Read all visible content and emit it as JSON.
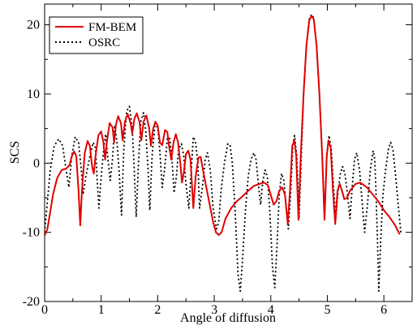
{
  "chart_data": {
    "type": "line",
    "title": "",
    "xlabel": "Angle of diffusion",
    "ylabel": "SCS",
    "xlim": [
      0,
      6.5
    ],
    "ylim": [
      -20,
      23
    ],
    "xticks": [
      0,
      1,
      2,
      3,
      4,
      5,
      6
    ],
    "yticks": [
      -20,
      -10,
      0,
      10,
      20
    ],
    "grid": false,
    "legend_position": "top-left",
    "series": [
      {
        "name": "FM-BEM",
        "color": "#e00000",
        "style": "solid",
        "points": [
          [
            0.0,
            -10.5
          ],
          [
            0.05,
            -9.5
          ],
          [
            0.1,
            -7.0
          ],
          [
            0.15,
            -4.5
          ],
          [
            0.22,
            -2.2
          ],
          [
            0.3,
            -1.0
          ],
          [
            0.38,
            -0.8
          ],
          [
            0.44,
            -0.3
          ],
          [
            0.48,
            1.0
          ],
          [
            0.52,
            1.7
          ],
          [
            0.56,
            1.0
          ],
          [
            0.6,
            -4.0
          ],
          [
            0.63,
            -9.0
          ],
          [
            0.66,
            -4.0
          ],
          [
            0.71,
            1.5
          ],
          [
            0.76,
            3.2
          ],
          [
            0.8,
            2.5
          ],
          [
            0.84,
            -0.5
          ],
          [
            0.87,
            -1.5
          ],
          [
            0.9,
            1.0
          ],
          [
            0.95,
            4.0
          ],
          [
            1.0,
            4.6
          ],
          [
            1.04,
            3.0
          ],
          [
            1.07,
            0.5
          ],
          [
            1.1,
            3.0
          ],
          [
            1.15,
            5.8
          ],
          [
            1.2,
            5.2
          ],
          [
            1.23,
            3.0
          ],
          [
            1.26,
            5.5
          ],
          [
            1.3,
            6.8
          ],
          [
            1.35,
            5.8
          ],
          [
            1.38,
            3.3
          ],
          [
            1.42,
            6.0
          ],
          [
            1.47,
            7.1
          ],
          [
            1.52,
            5.8
          ],
          [
            1.55,
            4.3
          ],
          [
            1.59,
            6.5
          ],
          [
            1.63,
            7.2
          ],
          [
            1.68,
            5.9
          ],
          [
            1.71,
            3.3
          ],
          [
            1.75,
            6.0
          ],
          [
            1.8,
            6.9
          ],
          [
            1.85,
            5.0
          ],
          [
            1.88,
            2.5
          ],
          [
            1.92,
            5.0
          ],
          [
            1.96,
            6.0
          ],
          [
            2.0,
            5.4
          ],
          [
            2.04,
            3.0
          ],
          [
            2.08,
            2.6
          ],
          [
            2.13,
            4.8
          ],
          [
            2.17,
            4.5
          ],
          [
            2.2,
            2.5
          ],
          [
            2.24,
            0.5
          ],
          [
            2.28,
            3.0
          ],
          [
            2.32,
            4.2
          ],
          [
            2.36,
            3.0
          ],
          [
            2.4,
            0.0
          ],
          [
            2.43,
            -2.8
          ],
          [
            2.46,
            -1.5
          ],
          [
            2.5,
            1.3
          ],
          [
            2.54,
            1.8
          ],
          [
            2.58,
            0.5
          ],
          [
            2.63,
            -6.5
          ],
          [
            2.67,
            -2.0
          ],
          [
            2.72,
            0.8
          ],
          [
            2.76,
            0.9
          ],
          [
            2.8,
            -1.0
          ],
          [
            2.86,
            -3.5
          ],
          [
            2.92,
            -6.0
          ],
          [
            2.98,
            -8.5
          ],
          [
            3.03,
            -10.0
          ],
          [
            3.08,
            -10.4
          ],
          [
            3.13,
            -10.0
          ],
          [
            3.2,
            -8.0
          ],
          [
            3.3,
            -6.5
          ],
          [
            3.4,
            -5.5
          ],
          [
            3.5,
            -4.8
          ],
          [
            3.6,
            -4.0
          ],
          [
            3.7,
            -3.3
          ],
          [
            3.8,
            -3.0
          ],
          [
            3.88,
            -2.8
          ],
          [
            3.95,
            -3.2
          ],
          [
            4.0,
            -4.6
          ],
          [
            4.05,
            -6.0
          ],
          [
            4.1,
            -5.5
          ],
          [
            4.15,
            -4.0
          ],
          [
            4.2,
            -3.5
          ],
          [
            4.25,
            -4.5
          ],
          [
            4.3,
            -8.8
          ],
          [
            4.34,
            -4.0
          ],
          [
            4.38,
            2.5
          ],
          [
            4.42,
            3.3
          ],
          [
            4.45,
            1.0
          ],
          [
            4.49,
            -8.2
          ],
          [
            4.53,
            1.0
          ],
          [
            4.58,
            10.0
          ],
          [
            4.63,
            17.0
          ],
          [
            4.68,
            20.6
          ],
          [
            4.72,
            21.3
          ],
          [
            4.76,
            20.8
          ],
          [
            4.81,
            17.0
          ],
          [
            4.86,
            10.0
          ],
          [
            4.91,
            1.0
          ],
          [
            4.95,
            -8.2
          ],
          [
            4.99,
            1.0
          ],
          [
            5.02,
            3.3
          ],
          [
            5.06,
            2.2
          ],
          [
            5.1,
            -4.0
          ],
          [
            5.14,
            -8.8
          ],
          [
            5.18,
            -4.0
          ],
          [
            5.22,
            -3.0
          ],
          [
            5.26,
            -4.0
          ],
          [
            5.3,
            -5.2
          ],
          [
            5.35,
            -5.0
          ],
          [
            5.4,
            -4.0
          ],
          [
            5.5,
            -3.0
          ],
          [
            5.58,
            -2.8
          ],
          [
            5.7,
            -3.5
          ],
          [
            5.8,
            -4.5
          ],
          [
            5.9,
            -5.5
          ],
          [
            6.0,
            -6.8
          ],
          [
            6.1,
            -7.8
          ],
          [
            6.2,
            -9.0
          ],
          [
            6.28,
            -10.3
          ]
        ]
      },
      {
        "name": "OSRC",
        "color": "#000000",
        "style": "dotted",
        "points": [
          [
            0.0,
            -10.0
          ],
          [
            0.05,
            -5.5
          ],
          [
            0.1,
            -1.0
          ],
          [
            0.17,
            2.5
          ],
          [
            0.25,
            3.5
          ],
          [
            0.32,
            2.5
          ],
          [
            0.38,
            -1.0
          ],
          [
            0.43,
            -3.5
          ],
          [
            0.48,
            1.0
          ],
          [
            0.54,
            3.8
          ],
          [
            0.6,
            3.0
          ],
          [
            0.65,
            -1.0
          ],
          [
            0.68,
            -4.5
          ],
          [
            0.74,
            -1.5
          ],
          [
            0.8,
            1.0
          ],
          [
            0.86,
            3.0
          ],
          [
            0.9,
            2.2
          ],
          [
            0.93,
            -2.5
          ],
          [
            0.96,
            -6.5
          ],
          [
            1.0,
            -2.0
          ],
          [
            1.05,
            2.5
          ],
          [
            1.08,
            4.2
          ],
          [
            1.12,
            0.5
          ],
          [
            1.16,
            -2.5
          ],
          [
            1.2,
            0.5
          ],
          [
            1.24,
            5.5
          ],
          [
            1.28,
            3.0
          ],
          [
            1.32,
            -1.5
          ],
          [
            1.36,
            -7.5
          ],
          [
            1.4,
            2.0
          ],
          [
            1.45,
            7.5
          ],
          [
            1.5,
            8.2
          ],
          [
            1.55,
            5.0
          ],
          [
            1.58,
            0.0
          ],
          [
            1.62,
            -7.8
          ],
          [
            1.66,
            0.0
          ],
          [
            1.7,
            6.0
          ],
          [
            1.75,
            7.3
          ],
          [
            1.79,
            4.5
          ],
          [
            1.83,
            -1.0
          ],
          [
            1.86,
            -6.8
          ],
          [
            1.9,
            1.0
          ],
          [
            1.95,
            5.5
          ],
          [
            2.0,
            5.2
          ],
          [
            2.04,
            1.5
          ],
          [
            2.08,
            -3.5
          ],
          [
            2.12,
            -1.0
          ],
          [
            2.17,
            3.5
          ],
          [
            2.21,
            3.7
          ],
          [
            2.25,
            1.0
          ],
          [
            2.29,
            -4.3
          ],
          [
            2.33,
            -2.0
          ],
          [
            2.37,
            2.0
          ],
          [
            2.42,
            2.8
          ],
          [
            2.46,
            1.0
          ],
          [
            2.5,
            -3.0
          ],
          [
            2.55,
            -6.5
          ],
          [
            2.59,
            -1.5
          ],
          [
            2.63,
            3.8
          ],
          [
            2.67,
            3.0
          ],
          [
            2.71,
            0.0
          ],
          [
            2.74,
            -6.5
          ],
          [
            2.79,
            -3.5
          ],
          [
            2.84,
            0.5
          ],
          [
            2.88,
            1.5
          ],
          [
            2.93,
            -1.0
          ],
          [
            2.98,
            -6.5
          ],
          [
            3.04,
            -9.5
          ],
          [
            3.08,
            -8.5
          ],
          [
            3.12,
            -4.0
          ],
          [
            3.18,
            0.0
          ],
          [
            3.24,
            2.8
          ],
          [
            3.28,
            2.6
          ],
          [
            3.32,
            0.0
          ],
          [
            3.37,
            -7.0
          ],
          [
            3.42,
            -16.0
          ],
          [
            3.46,
            -18.5
          ],
          [
            3.5,
            -14.0
          ],
          [
            3.55,
            -7.0
          ],
          [
            3.6,
            -2.0
          ],
          [
            3.65,
            0.5
          ],
          [
            3.7,
            1.5
          ],
          [
            3.74,
            0.5
          ],
          [
            3.78,
            -3.0
          ],
          [
            3.82,
            -6.0
          ],
          [
            3.86,
            -2.5
          ],
          [
            3.9,
            -1.0
          ],
          [
            3.94,
            -2.0
          ],
          [
            3.98,
            -6.5
          ],
          [
            4.03,
            -15.0
          ],
          [
            4.07,
            -18.0
          ],
          [
            4.11,
            -12.0
          ],
          [
            4.15,
            -4.5
          ],
          [
            4.19,
            -1.5
          ],
          [
            4.23,
            -2.5
          ],
          [
            4.27,
            -6.0
          ],
          [
            4.31,
            -9.5
          ],
          [
            4.35,
            -4.5
          ],
          [
            4.39,
            2.5
          ],
          [
            4.42,
            4.0
          ],
          [
            4.46,
            1.0
          ],
          [
            4.5,
            -8.0
          ],
          [
            4.54,
            1.0
          ],
          [
            4.58,
            10.0
          ],
          [
            4.63,
            17.0
          ],
          [
            4.68,
            20.8
          ],
          [
            4.72,
            21.5
          ],
          [
            4.76,
            21.0
          ],
          [
            4.81,
            17.0
          ],
          [
            4.86,
            10.0
          ],
          [
            4.91,
            1.0
          ],
          [
            4.95,
            -8.0
          ],
          [
            4.99,
            1.0
          ],
          [
            5.03,
            4.0
          ],
          [
            5.07,
            2.0
          ],
          [
            5.11,
            -3.5
          ],
          [
            5.15,
            -8.0
          ],
          [
            5.19,
            -4.0
          ],
          [
            5.23,
            -1.5
          ],
          [
            5.27,
            -0.5
          ],
          [
            5.31,
            -1.5
          ],
          [
            5.35,
            -4.0
          ],
          [
            5.4,
            -8.0
          ],
          [
            5.44,
            -3.5
          ],
          [
            5.48,
            0.5
          ],
          [
            5.52,
            1.5
          ],
          [
            5.57,
            -1.0
          ],
          [
            5.61,
            -5.0
          ],
          [
            5.66,
            -10.0
          ],
          [
            5.71,
            -6.0
          ],
          [
            5.76,
            -1.0
          ],
          [
            5.81,
            1.8
          ],
          [
            5.84,
            0.5
          ],
          [
            5.86,
            -4.0
          ],
          [
            5.89,
            -12.0
          ],
          [
            5.91,
            -18.5
          ],
          [
            5.94,
            -12.0
          ],
          [
            5.98,
            -5.0
          ],
          [
            6.03,
            -1.0
          ],
          [
            6.08,
            2.0
          ],
          [
            6.12,
            3.0
          ],
          [
            6.16,
            2.0
          ],
          [
            6.21,
            -2.0
          ],
          [
            6.26,
            -6.5
          ],
          [
            6.3,
            -10.0
          ]
        ]
      }
    ]
  }
}
